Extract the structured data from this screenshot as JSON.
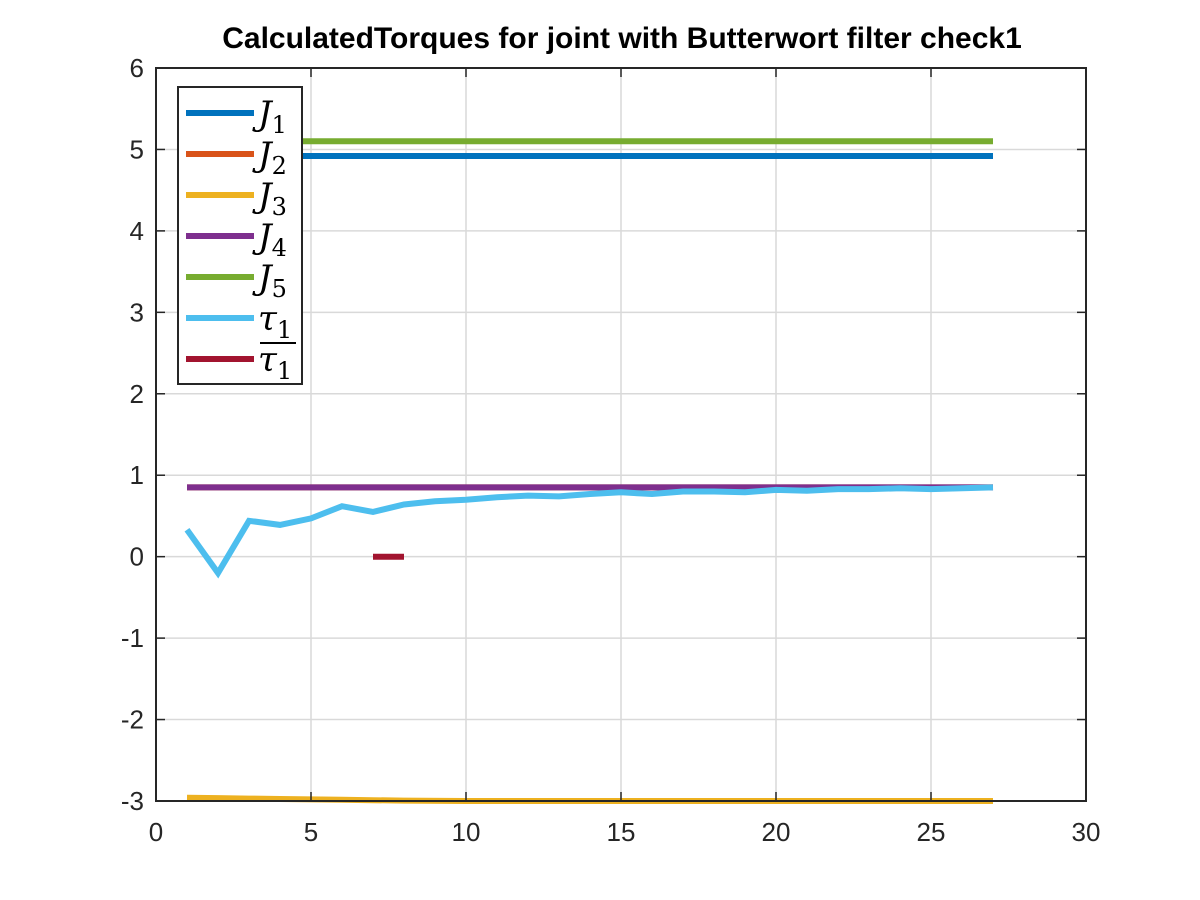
{
  "chart_data": {
    "type": "line",
    "title": "CalculatedTorques for joint with Butterwort filter check1",
    "xlabel": "",
    "ylabel": "",
    "xlim": [
      0,
      30
    ],
    "ylim": [
      -3,
      6
    ],
    "xticks": [
      0,
      5,
      10,
      15,
      20,
      25,
      30
    ],
    "yticks": [
      -3,
      -2,
      -1,
      0,
      1,
      2,
      3,
      4,
      5,
      6
    ],
    "xtick_labels": [
      "0",
      "5",
      "10",
      "15",
      "20",
      "25",
      "30"
    ],
    "ytick_labels": [
      "-3",
      "-2",
      "-1",
      "0",
      "1",
      "2",
      "3",
      "4",
      "5",
      "6"
    ],
    "grid": true,
    "legend_position": "top-left",
    "series": [
      {
        "name": "J1",
        "legend_base": "J",
        "legend_sub": "1",
        "legend_overline": false,
        "color": "#0072BD",
        "x": [
          1,
          27
        ],
        "y": [
          4.92,
          4.92
        ]
      },
      {
        "name": "J2",
        "legend_base": "J",
        "legend_sub": "2",
        "legend_overline": false,
        "color": "#D95319",
        "x": [
          1,
          27
        ],
        "y": [
          0.85,
          0.85
        ]
      },
      {
        "name": "J3",
        "legend_base": "J",
        "legend_sub": "3",
        "legend_overline": false,
        "color": "#EDB120",
        "x": [
          1,
          2,
          3,
          4,
          5,
          6,
          7,
          8,
          10,
          27
        ],
        "y": [
          -2.96,
          -2.965,
          -2.97,
          -2.975,
          -2.98,
          -2.985,
          -2.99,
          -2.995,
          -3.0,
          -3.0
        ]
      },
      {
        "name": "J4",
        "legend_base": "J",
        "legend_sub": "4",
        "legend_overline": false,
        "color": "#7E2F8E",
        "x": [
          1,
          27
        ],
        "y": [
          0.85,
          0.85
        ]
      },
      {
        "name": "J5",
        "legend_base": "J",
        "legend_sub": "5",
        "legend_overline": false,
        "color": "#77AC30",
        "x": [
          1,
          27
        ],
        "y": [
          5.1,
          5.1
        ]
      },
      {
        "name": "τ1",
        "legend_base": "τ",
        "legend_sub": "1",
        "legend_overline": false,
        "color": "#4DBEEE",
        "x": [
          1,
          2,
          3,
          4,
          5,
          6,
          7,
          8,
          9,
          10,
          11,
          12,
          13,
          14,
          15,
          16,
          17,
          18,
          19,
          20,
          21,
          22,
          23,
          24,
          25,
          26,
          27
        ],
        "y": [
          0.33,
          -0.2,
          0.44,
          0.39,
          0.47,
          0.62,
          0.55,
          0.64,
          0.68,
          0.7,
          0.73,
          0.75,
          0.74,
          0.77,
          0.79,
          0.77,
          0.8,
          0.8,
          0.79,
          0.82,
          0.81,
          0.83,
          0.83,
          0.84,
          0.83,
          0.84,
          0.85
        ]
      },
      {
        "name": "τ̄1",
        "legend_base": "τ",
        "legend_sub": "1",
        "legend_overline": true,
        "color": "#A2142F",
        "x": [
          7,
          8
        ],
        "y": [
          0.0,
          0.0
        ]
      }
    ]
  }
}
